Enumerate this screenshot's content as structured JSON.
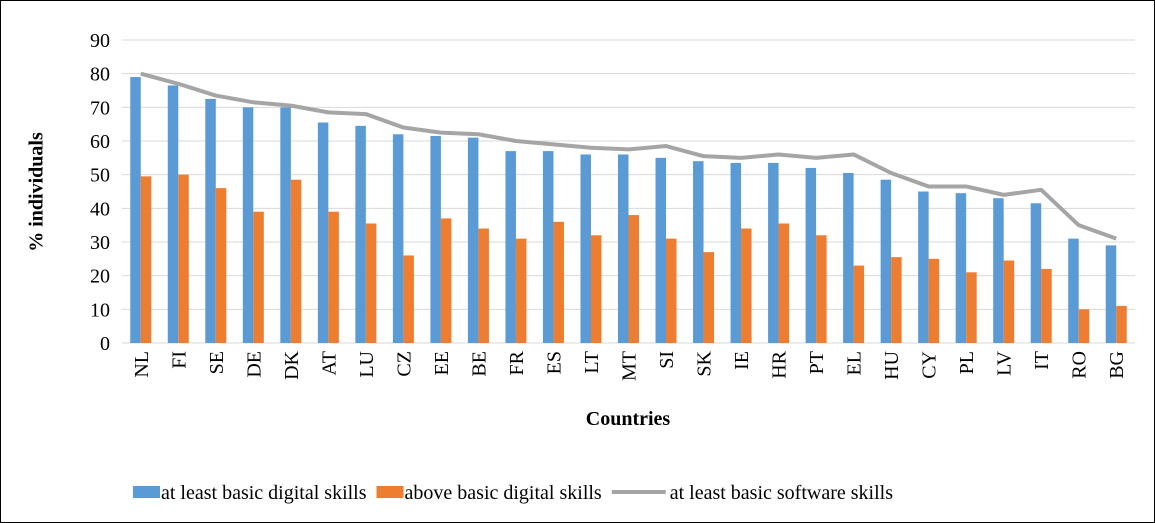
{
  "chart_data": {
    "type": "bar",
    "y_label": "% individuals",
    "x_label": "Countries",
    "categories": [
      "NL",
      "FI",
      "SE",
      "DE",
      "DK",
      "AT",
      "LU",
      "CZ",
      "EE",
      "BE",
      "FR",
      "ES",
      "LT",
      "MT",
      "SI",
      "SK",
      "IE",
      "HR",
      "PT",
      "EL",
      "HU",
      "CY",
      "PL",
      "LV",
      "IT",
      "RO",
      "BG"
    ],
    "series": [
      {
        "name": "at least basic digital skills",
        "type": "bar",
        "color": "#5b9bd5",
        "values": [
          79,
          76.5,
          72.5,
          70,
          70,
          65.5,
          64.5,
          62,
          61.5,
          61,
          57,
          57,
          56,
          56,
          55,
          54,
          53.5,
          53.5,
          52,
          50.5,
          48.5,
          45,
          44.5,
          43,
          41.5,
          31,
          29
        ]
      },
      {
        "name": "above basic digital skills",
        "type": "bar",
        "color": "#ed7d31",
        "values": [
          49.5,
          50,
          46,
          39,
          48.5,
          39,
          35.5,
          26,
          37,
          34,
          31,
          36,
          32,
          38,
          31,
          27,
          34,
          35.5,
          32,
          23,
          25.5,
          25,
          21,
          24.5,
          22,
          10,
          11
        ]
      },
      {
        "name": "at least basic software skills",
        "type": "line",
        "color": "#a5a5a5",
        "values": [
          80,
          77,
          73.5,
          71.5,
          70.5,
          68.5,
          68,
          64,
          62.5,
          62,
          60,
          59,
          58,
          57.5,
          58.5,
          55.5,
          55,
          56,
          55,
          56,
          50.5,
          46.5,
          46.5,
          44,
          45.5,
          35,
          31
        ]
      }
    ],
    "ylim": [
      0,
      90
    ],
    "yticks": [
      0,
      10,
      20,
      30,
      40,
      50,
      60,
      70,
      80,
      90
    ],
    "grid": true,
    "legend": "bottom"
  }
}
